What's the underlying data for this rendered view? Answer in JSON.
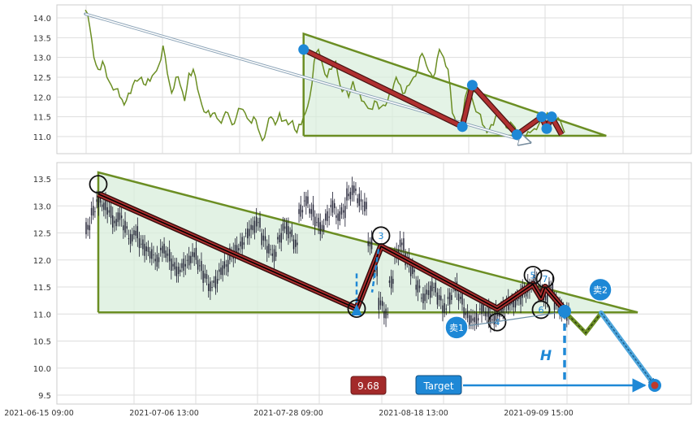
{
  "chart_data": [
    {
      "type": "line",
      "panel": "top",
      "x_range": [
        "2021-06-15 09:00",
        "2021-09-30 15:00"
      ],
      "ylim": [
        10.7,
        14.3
      ],
      "yticks": [
        "14.0",
        "13.5",
        "13.0",
        "12.5",
        "12.0",
        "11.5",
        "11.0"
      ],
      "line_color": "#6b8e23",
      "series": [
        {
          "values": [
            14.2,
            13.8,
            13.0,
            12.7,
            12.9,
            12.5,
            12.3,
            12.2,
            12.0,
            11.8,
            12.1,
            12.3,
            12.4,
            12.5,
            12.3,
            12.4,
            12.6,
            12.8,
            13.3,
            12.6,
            12.1,
            12.5,
            12.3,
            11.9,
            12.6,
            12.7,
            12.2,
            11.8,
            11.6,
            11.5,
            11.6,
            11.4,
            11.5,
            11.6,
            11.3,
            11.5,
            11.7,
            11.6,
            11.4,
            11.5,
            11.2,
            10.9,
            11.2,
            11.5,
            11.3,
            11.6,
            11.4,
            11.3,
            11.4,
            11.1,
            11.3,
            11.6,
            12.0,
            12.9,
            13.2,
            12.8,
            12.5,
            12.7,
            12.9,
            12.3,
            12.2,
            12.0,
            12.4,
            12.1,
            11.9,
            11.8,
            11.7,
            11.9,
            11.7,
            11.8,
            11.9,
            12.1,
            12.5,
            12.3,
            12.1,
            12.3,
            12.5,
            12.7,
            13.1,
            12.8,
            12.6,
            12.6,
            13.2,
            13.0,
            12.7,
            11.6,
            11.3,
            11.4,
            12.0,
            12.2,
            11.8,
            11.6,
            11.3,
            11.1,
            11.3,
            11.5,
            11.6,
            11.4,
            11.2,
            11.3,
            11.1,
            10.9,
            11.0,
            11.1,
            11.2,
            11.3,
            11.3,
            11.6,
            11.5,
            11.4,
            11.4,
            11.1
          ]
        }
      ],
      "pattern_line_color": "#b03030",
      "pattern_points": [
        {
          "x": "2021-07-29 09:00",
          "y": 13.2
        },
        {
          "x": "2021-08-30 09:00",
          "y": 11.25
        },
        {
          "x": "2021-09-01 09:00",
          "y": 12.3
        },
        {
          "x": "2021-09-10 09:00",
          "y": 11.05
        },
        {
          "x": "2021-09-15 09:00",
          "y": 11.5
        },
        {
          "x": "2021-09-16 09:00",
          "y": 11.2
        },
        {
          "x": "2021-09-17 09:00",
          "y": 11.5
        },
        {
          "x": "2021-09-19 09:00",
          "y": 11.05
        }
      ],
      "triangle": {
        "x": [
          "2021-07-29 09:00",
          "2021-09-28 09:00"
        ],
        "top_y": 13.6,
        "base_y": 11.02
      },
      "arrow": {
        "from": {
          "x": "2021-06-15 09:00",
          "y": 14.1
        },
        "to": {
          "x": "2021-09-13 09:00",
          "y": 10.85
        }
      }
    },
    {
      "type": "candlestick",
      "panel": "bottom",
      "x_range": [
        "2021-06-15 09:00",
        "2021-10-10 09:00"
      ],
      "xticks": [
        "2021-06-15 09:00",
        "2021-07-06 13:00",
        "2021-07-28 09:00",
        "2021-08-18 13:00",
        "2021-09-09 15:00"
      ],
      "ylim": [
        9.3,
        13.8
      ],
      "yticks": [
        "13.5",
        "13.0",
        "12.5",
        "12.0",
        "11.5",
        "11.0",
        "10.5",
        "10.0",
        "9.5"
      ],
      "candle_color": "#1a1a2e",
      "series": [
        {
          "values": [
            12.6,
            12.9,
            13.1,
            13.0,
            12.9,
            12.7,
            12.8,
            12.6,
            12.4,
            12.5,
            12.3,
            12.2,
            12.1,
            12.0,
            12.2,
            12.1,
            11.9,
            11.8,
            11.9,
            12.0,
            12.1,
            11.9,
            11.7,
            11.5,
            11.6,
            11.8,
            11.9,
            12.1,
            12.2,
            12.3,
            12.5,
            12.6,
            12.7,
            12.4,
            12.2,
            12.1,
            12.4,
            12.6,
            12.5,
            12.3,
            12.9,
            13.1,
            12.9,
            12.7,
            12.6,
            12.8,
            13.0,
            12.8,
            12.9,
            13.2,
            13.3,
            13.1,
            13.0,
            12.3,
            11.8,
            11.2,
            11.0,
            11.6,
            12.1,
            12.3,
            12.0,
            11.8,
            11.5,
            11.3,
            11.4,
            11.5,
            11.3,
            11.1,
            11.3,
            11.5,
            11.3,
            11.0,
            10.9,
            10.9,
            11.1,
            11.0,
            10.9,
            11.0,
            11.1,
            11.2,
            11.2,
            11.3,
            11.4,
            11.5,
            11.6,
            11.4,
            11.3,
            11.5,
            11.2,
            11.1,
            11.0
          ]
        }
      ],
      "pattern_line_color": "#b03030",
      "pattern_points": [
        {
          "x": "2021-06-20 09:00",
          "y": 13.22
        },
        {
          "x": "2021-08-11 09:00",
          "y": 11.1
        },
        {
          "x": "2021-08-15 09:00",
          "y": 12.25
        },
        {
          "x": "2021-09-02 09:00",
          "y": 11.1
        },
        {
          "x": "2021-09-09 09:00",
          "y": 11.55
        },
        {
          "x": "2021-09-10 09:00",
          "y": 11.3
        },
        {
          "x": "2021-09-11 09:00",
          "y": 11.5
        },
        {
          "x": "2021-09-13 09:00",
          "y": 11.08
        }
      ],
      "point_labels": [
        {
          "label": "",
          "x": "2021-06-20 09:00",
          "y": 13.4
        },
        {
          "label": "",
          "x": "2021-08-11 09:00",
          "y": 11.1
        },
        {
          "label": "3",
          "x": "2021-08-15 09:00",
          "y": 12.45
        },
        {
          "label": "4",
          "x": "2021-09-02 09:00",
          "y": 10.85
        },
        {
          "label": "5",
          "x": "2021-09-09 09:00",
          "y": 11.72
        },
        {
          "label": "6",
          "x": "2021-09-10 09:00",
          "y": 11.08
        },
        {
          "label": "7",
          "x": "2021-09-11 09:00",
          "y": 11.65
        }
      ],
      "triangle": {
        "x": [
          "2021-06-20 09:00",
          "2021-09-30 09:00"
        ],
        "top_y": 13.62,
        "base_y": 11.03
      },
      "projection_points": [
        {
          "x": "2021-09-13 09:00",
          "y": 11.05
        },
        {
          "x": "2021-09-17 09:00",
          "y": 10.65
        },
        {
          "x": "2021-09-19 09:00",
          "y": 11.02
        }
      ],
      "target_path": [
        {
          "x": "2021-09-19 09:00",
          "y": 11.02
        },
        {
          "x": "2021-09-29 09:00",
          "y": 9.68
        }
      ],
      "height_marker": {
        "x": "2021-08-11 09:00",
        "from": 11.75,
        "to": 11.1
      },
      "height_label": "H",
      "target_price": "9.68",
      "target_label": "Target",
      "sell_labels": [
        {
          "label": "卖1",
          "x": "2021-08-29 09:00",
          "y": 10.75
        },
        {
          "label": "卖2",
          "x": "2021-09-19 09:00",
          "y": 11.45
        }
      ],
      "colors": {
        "triangle_edge": "#6b8e23",
        "triangle_fill": "#d8eedb",
        "accent_blue": "#1e88d6",
        "price_badge": "#a32a2a",
        "target_marker": "#c0392b"
      }
    }
  ]
}
